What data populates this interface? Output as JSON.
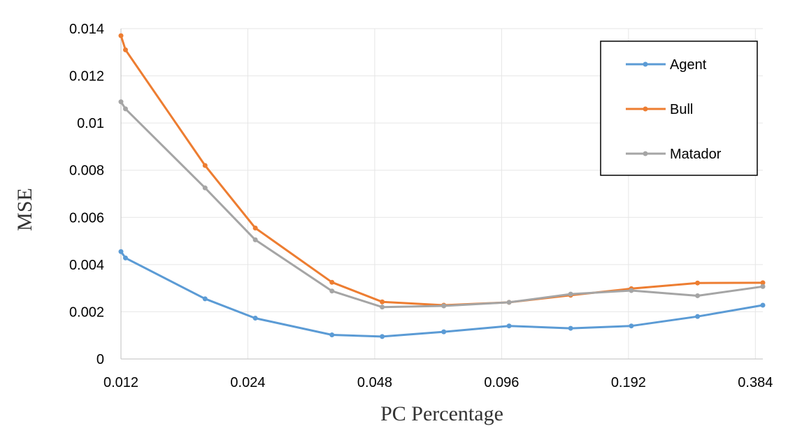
{
  "chart_data": {
    "type": "line",
    "xlabel": "PC Percentage",
    "ylabel": "MSE",
    "x_scale": "log2",
    "xlim": [
      0.012,
      0.4
    ],
    "ylim": [
      0,
      0.014
    ],
    "grid": true,
    "legend_position": "top-right",
    "x_ticks": [
      "0.012",
      "0.024",
      "0.048",
      "0.096",
      "0.192",
      "0.384"
    ],
    "y_ticks": [
      "0",
      "0.002",
      "0.004",
      "0.006",
      "0.008",
      "0.01",
      "0.012",
      "0.014"
    ],
    "x": [
      0.012,
      0.0123,
      0.019,
      0.025,
      0.038,
      0.05,
      0.07,
      0.1,
      0.14,
      0.195,
      0.28,
      0.4
    ],
    "series": [
      {
        "name": "Agent",
        "color": "#5B9BD5",
        "values": [
          0.00455,
          0.00428,
          0.00255,
          0.00173,
          0.00102,
          0.00095,
          0.00115,
          0.0014,
          0.0013,
          0.0014,
          0.0018,
          0.00228
        ]
      },
      {
        "name": "Bull",
        "color": "#ED7D31",
        "values": [
          0.0137,
          0.0131,
          0.0082,
          0.00555,
          0.00325,
          0.00242,
          0.00228,
          0.0024,
          0.0027,
          0.00298,
          0.00322,
          0.00323
        ]
      },
      {
        "name": "Matador",
        "color": "#A5A5A5",
        "values": [
          0.0109,
          0.0106,
          0.00725,
          0.00505,
          0.00288,
          0.0022,
          0.00225,
          0.0024,
          0.00275,
          0.0029,
          0.00268,
          0.00307
        ]
      }
    ]
  }
}
